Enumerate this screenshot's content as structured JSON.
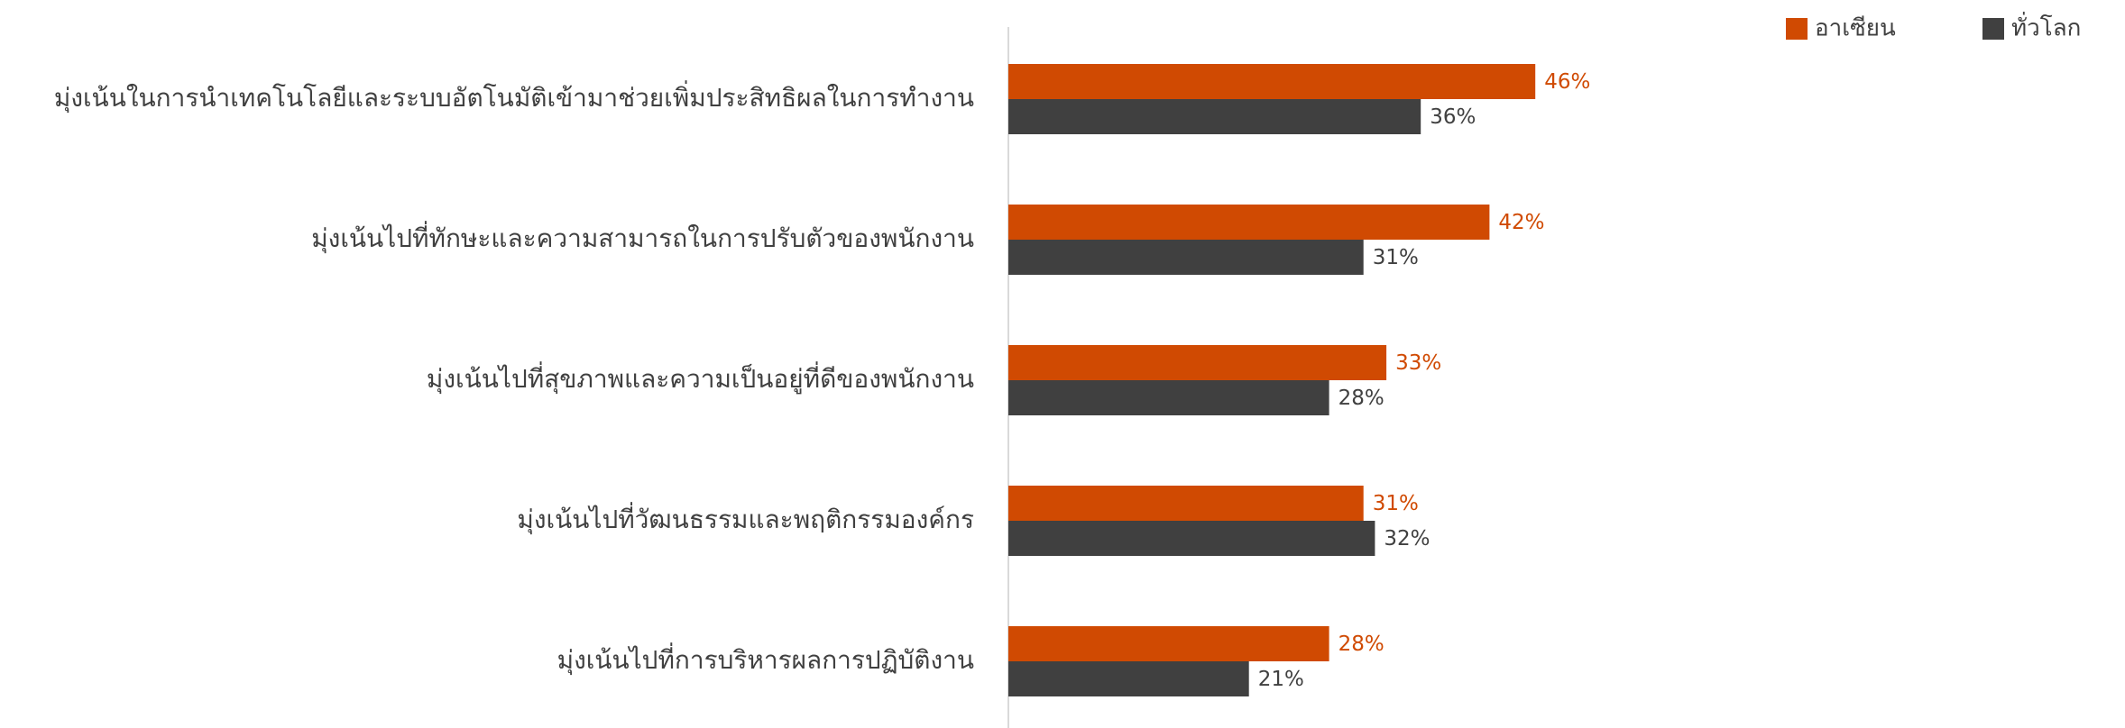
{
  "chart_data": {
    "type": "bar",
    "orientation": "horizontal",
    "categories": [
      "มุ่งเน้นในการนำเทคโนโลยีและระบบอัตโนมัติเข้ามาช่วยเพิ่มประสิทธิผลในการทำงาน",
      "มุ่งเน้นไปที่ทักษะและความสามารถในการปรับตัวของพนักงาน",
      "มุ่งเน้นไปที่สุขภาพและความเป็นอยู่ที่ดีของพนักงาน",
      "มุ่งเน้นไปที่วัฒนธรรมและพฤติกรรมองค์กร",
      "มุ่งเน้นไปที่การบริหารผลการปฏิบัติงาน"
    ],
    "series": [
      {
        "name": "อาเซียน",
        "color": "#d04a02",
        "values": [
          46,
          42,
          33,
          31,
          28
        ],
        "value_labels": [
          "46%",
          "42%",
          "33%",
          "31%",
          "28%"
        ]
      },
      {
        "name": "ทั่วโลก",
        "color": "#404040",
        "values": [
          36,
          31,
          28,
          32,
          21
        ],
        "value_labels": [
          "36%",
          "31%",
          "28%",
          "32%",
          "21%"
        ]
      }
    ],
    "legend": "top-right"
  }
}
